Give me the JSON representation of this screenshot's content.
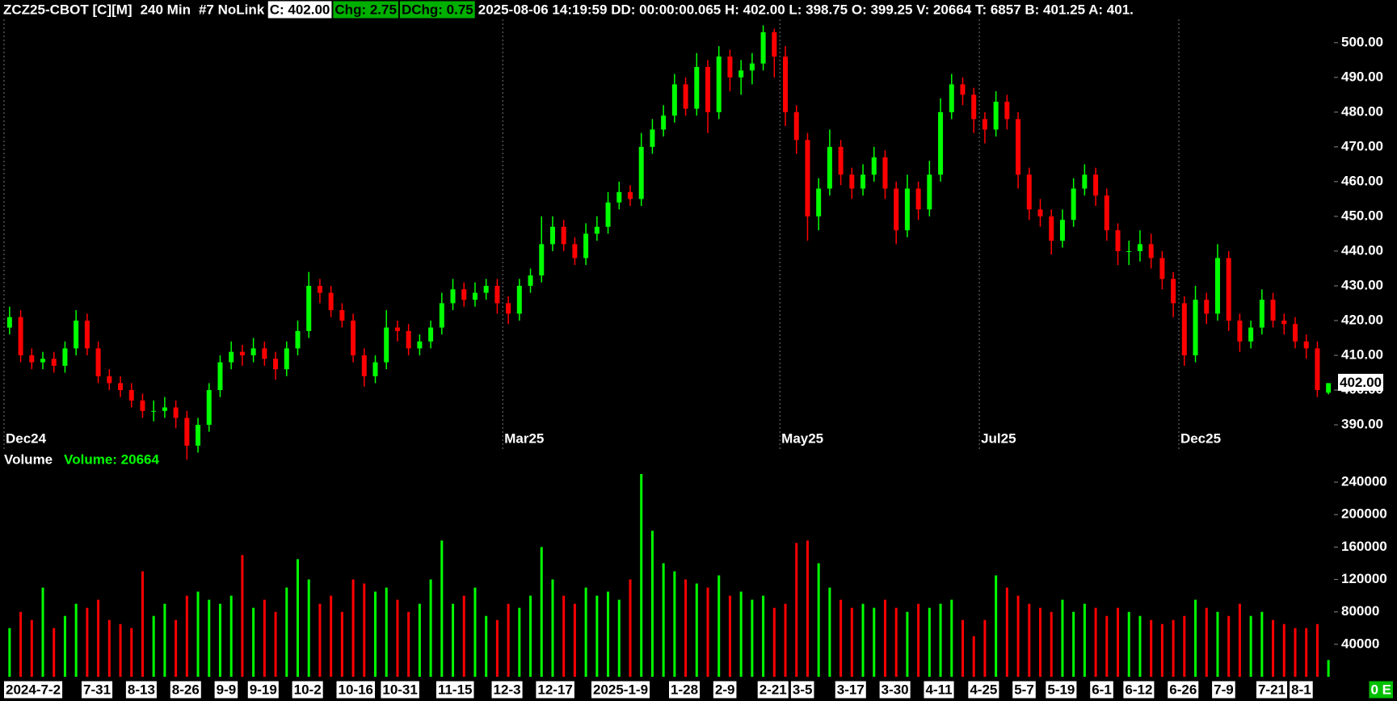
{
  "header": {
    "symbol": "ZCZ25-CBOT [C][M]",
    "interval": "240 Min",
    "link": "#7 NoLink",
    "close": "C: 402.00",
    "change": "Chg: 2.75",
    "day_change": "DChg: 0.75",
    "details": "2025-08-06 14:19:59 DD: 00:00:00.065 H: 402.00 L: 398.75 O: 399.25 V: 20664 T: 6857 B: 401.25 A: 401."
  },
  "chart_data": [
    {
      "type": "candlestick",
      "categories": [
        "2024-7-2",
        null,
        null,
        null,
        null,
        null,
        null,
        "7-31",
        null,
        null,
        null,
        "8-13",
        null,
        null,
        null,
        "8-26",
        null,
        null,
        null,
        "9-9",
        null,
        null,
        "9-19",
        null,
        null,
        null,
        "10-2",
        null,
        null,
        null,
        "10-16",
        null,
        null,
        null,
        "10-31",
        null,
        null,
        null,
        null,
        "11-15",
        null,
        null,
        null,
        null,
        "12-3",
        null,
        null,
        null,
        "12-17",
        null,
        null,
        null,
        null,
        "2025-1-9",
        null,
        null,
        null,
        null,
        null,
        null,
        "1-28",
        null,
        null,
        null,
        "2-9",
        null,
        null,
        null,
        "2-21",
        null,
        null,
        "3-5",
        null,
        null,
        null,
        "3-17",
        null,
        null,
        null,
        "3-30",
        null,
        null,
        null,
        "4-11",
        null,
        null,
        null,
        "4-25",
        null,
        null,
        null,
        "5-7",
        null,
        null,
        "5-19",
        null,
        null,
        null,
        "6-1",
        null,
        null,
        "6-12",
        null,
        null,
        null,
        "6-26",
        null,
        null,
        null,
        "7-9",
        null,
        null,
        null,
        "7-21",
        null,
        null,
        "8-1",
        null,
        null,
        null
      ],
      "period_markers": [
        "Dec24",
        null,
        null,
        null,
        null,
        null,
        null,
        null,
        null,
        null,
        null,
        null,
        null,
        null,
        null,
        null,
        null,
        null,
        null,
        null,
        null,
        null,
        null,
        null,
        null,
        null,
        null,
        null,
        null,
        null,
        null,
        null,
        null,
        null,
        null,
        null,
        null,
        null,
        null,
        null,
        null,
        null,
        null,
        null,
        null,
        "Mar25",
        null,
        null,
        null,
        null,
        null,
        null,
        null,
        null,
        null,
        null,
        null,
        null,
        null,
        null,
        null,
        null,
        null,
        null,
        null,
        null,
        null,
        null,
        null,
        null,
        "May25",
        null,
        null,
        null,
        null,
        null,
        null,
        null,
        null,
        null,
        null,
        null,
        null,
        null,
        null,
        null,
        null,
        null,
        "Jul25",
        null,
        null,
        null,
        null,
        null,
        null,
        null,
        null,
        null,
        null,
        null,
        null,
        null,
        null,
        null,
        null,
        null,
        "Dec25",
        null,
        null,
        null,
        null,
        null,
        null,
        null,
        null,
        null,
        null,
        null,
        null,
        null
      ],
      "open": [
        418,
        421,
        410,
        408,
        409,
        407,
        412,
        420,
        412,
        404,
        402,
        400,
        397,
        394,
        394,
        395,
        392,
        384,
        390,
        400,
        408,
        411,
        410,
        412,
        409,
        406,
        412,
        417,
        430,
        428,
        423,
        420,
        410,
        404,
        408,
        418,
        417,
        412,
        414,
        418,
        425,
        429,
        426,
        428,
        430,
        425,
        422,
        430,
        433,
        442,
        447,
        442,
        438,
        445,
        447,
        454,
        457,
        455,
        470,
        475,
        479,
        488,
        481,
        493,
        480,
        496,
        490,
        492,
        494,
        503,
        496,
        480,
        472,
        450,
        458,
        470,
        462,
        458,
        462,
        467,
        458,
        446,
        458,
        452,
        462,
        480,
        488,
        485,
        478,
        475,
        483,
        478,
        462,
        452,
        450,
        443,
        449,
        458,
        462,
        456,
        446,
        440,
        440,
        442,
        438,
        432,
        425,
        410,
        426,
        422,
        438,
        420,
        414,
        418,
        426,
        420,
        419,
        414,
        412,
        399.25
      ],
      "high": [
        424,
        423,
        412,
        411,
        411,
        414,
        423,
        422,
        414,
        406,
        404,
        402,
        399,
        397,
        398,
        397,
        394,
        392,
        402,
        410,
        414,
        413,
        415,
        414,
        411,
        414,
        420,
        434,
        432,
        430,
        425,
        422,
        412,
        410,
        423,
        420,
        419,
        416,
        420,
        428,
        432,
        431,
        431,
        432,
        432,
        427,
        432,
        435,
        450,
        450,
        449,
        444,
        448,
        450,
        457,
        460,
        459,
        474,
        478,
        482,
        491,
        490,
        497,
        495,
        499,
        498,
        495,
        497,
        505,
        504,
        499,
        482,
        474,
        461,
        475,
        472,
        464,
        465,
        470,
        469,
        460,
        462,
        460,
        466,
        484,
        491,
        490,
        487,
        480,
        486,
        485,
        480,
        464,
        455,
        452,
        452,
        461,
        465,
        464,
        458,
        448,
        443,
        446,
        445,
        440,
        434,
        427,
        430,
        428,
        442,
        440,
        422,
        420,
        429,
        428,
        422,
        421,
        416,
        414,
        402
      ],
      "low": [
        416,
        408,
        406,
        406,
        405,
        405,
        410,
        410,
        402,
        400,
        398,
        395,
        392,
        391,
        392,
        389,
        380,
        382,
        388,
        398,
        406,
        407,
        408,
        407,
        403,
        404,
        410,
        415,
        425,
        421,
        418,
        408,
        401,
        402,
        406,
        414,
        410,
        410,
        412,
        416,
        423,
        424,
        424,
        426,
        422,
        419,
        420,
        428,
        431,
        440,
        440,
        436,
        436,
        443,
        445,
        452,
        453,
        453,
        468,
        473,
        477,
        479,
        479,
        474,
        478,
        486,
        485,
        488,
        492,
        490,
        476,
        468,
        443,
        446,
        456,
        459,
        455,
        456,
        460,
        455,
        442,
        444,
        449,
        450,
        460,
        478,
        482,
        474,
        471,
        473,
        475,
        458,
        449,
        447,
        439,
        441,
        447,
        456,
        453,
        443,
        436,
        436,
        437,
        435,
        429,
        421,
        407,
        408,
        419,
        420,
        417,
        411,
        412,
        416,
        418,
        416,
        412,
        409,
        398,
        398.75
      ],
      "close": [
        421,
        410,
        408,
        409,
        407,
        412,
        420,
        412,
        404,
        402,
        400,
        397,
        394,
        394,
        395,
        392,
        384,
        390,
        400,
        408,
        411,
        410,
        412,
        409,
        406,
        412,
        417,
        430,
        428,
        423,
        420,
        410,
        404,
        408,
        418,
        417,
        412,
        414,
        418,
        425,
        429,
        426,
        428,
        430,
        425,
        422,
        430,
        433,
        442,
        447,
        442,
        438,
        445,
        447,
        454,
        457,
        455,
        470,
        475,
        479,
        488,
        481,
        493,
        480,
        496,
        490,
        492,
        494,
        503,
        496,
        480,
        472,
        450,
        458,
        470,
        462,
        458,
        462,
        467,
        458,
        446,
        458,
        452,
        462,
        480,
        488,
        485,
        478,
        475,
        483,
        478,
        462,
        452,
        450,
        443,
        449,
        458,
        462,
        456,
        446,
        440,
        440,
        442,
        438,
        432,
        425,
        410,
        426,
        422,
        438,
        420,
        414,
        418,
        426,
        420,
        419,
        414,
        412,
        400,
        402
      ],
      "colors": {
        "up": "#00ff00",
        "down": "#ff0000"
      },
      "ylim": [
        382.8,
        506.7
      ],
      "yticks": [
        {
          "value": 390,
          "label": "390.00"
        },
        {
          "value": 400,
          "label": "400.00"
        },
        {
          "value": 410,
          "label": "410.00"
        },
        {
          "value": 420,
          "label": "420.00"
        },
        {
          "value": 430,
          "label": "430.00"
        },
        {
          "value": 440,
          "label": "440.00"
        },
        {
          "value": 450,
          "label": "450.00"
        },
        {
          "value": 460,
          "label": "460.00"
        },
        {
          "value": 470,
          "label": "470.00"
        },
        {
          "value": 480,
          "label": "480.00"
        },
        {
          "value": 490,
          "label": "490.00"
        },
        {
          "value": 500,
          "label": "500.00"
        }
      ],
      "last_price": {
        "value": 402,
        "label": "402.00"
      }
    },
    {
      "type": "bar",
      "title": "Volume",
      "subtitle": "Volume: 20664",
      "values": [
        60000,
        80000,
        70000,
        110000,
        60000,
        75000,
        90000,
        85000,
        95000,
        70000,
        65000,
        60000,
        130000,
        75000,
        90000,
        70000,
        100000,
        105000,
        95000,
        90000,
        100000,
        150000,
        85000,
        95000,
        80000,
        110000,
        145000,
        120000,
        90000,
        100000,
        80000,
        120000,
        115000,
        105000,
        110000,
        95000,
        80000,
        90000,
        120000,
        168000,
        90000,
        100000,
        110000,
        75000,
        70000,
        90000,
        85000,
        100000,
        160000,
        120000,
        100000,
        90000,
        110000,
        100000,
        105000,
        95000,
        120000,
        250000,
        180000,
        140000,
        130000,
        120000,
        115000,
        110000,
        125000,
        100000,
        105000,
        95000,
        100000,
        85000,
        90000,
        165000,
        168000,
        140000,
        110000,
        95000,
        85000,
        90000,
        85000,
        95000,
        85000,
        80000,
        90000,
        85000,
        90000,
        95000,
        70000,
        50000,
        70000,
        125000,
        110000,
        100000,
        90000,
        85000,
        80000,
        95000,
        80000,
        90000,
        85000,
        75000,
        85000,
        80000,
        75000,
        70000,
        65000,
        70000,
        75000,
        95000,
        85000,
        80000,
        75000,
        90000,
        75000,
        80000,
        70000,
        65000,
        60000,
        60000,
        65000,
        20664
      ],
      "colors": {
        "up": "#00ff00",
        "down": "#ff0000"
      },
      "ylim": [
        0,
        252000
      ],
      "yticks": [
        40000,
        80000,
        120000,
        160000,
        200000,
        240000
      ]
    }
  ],
  "footer": {
    "status": "0 E"
  }
}
